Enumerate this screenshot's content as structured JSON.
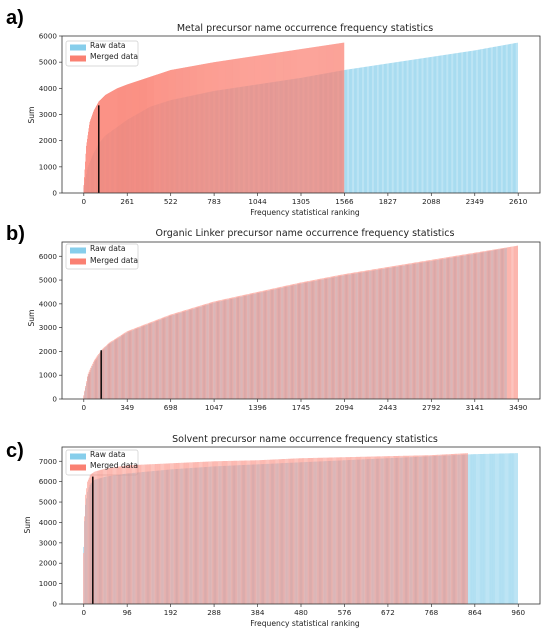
{
  "chart_data": [
    {
      "panel": "a)",
      "type": "bar",
      "title": "Metal precursor name occurrence frequency statistics",
      "xlabel": "Frequency statistical ranking",
      "ylabel": "Sum",
      "xlim": [
        -131,
        2741
      ],
      "ylim": [
        0,
        6000
      ],
      "xticks": [
        0,
        261,
        522,
        783,
        1044,
        1305,
        1566,
        1827,
        2088,
        2349,
        2610
      ],
      "yticks": [
        0,
        1000,
        2000,
        3000,
        4000,
        5000,
        6000
      ],
      "legend_position": "top-left",
      "marker_line": {
        "x": 90,
        "y": 3350
      },
      "series": [
        {
          "name": "Raw data",
          "color": "#87ceeb",
          "n": 2610,
          "x": [
            0,
            20,
            50,
            90,
            130,
            261,
            400,
            522,
            783,
            1044,
            1305,
            1566,
            1827,
            2088,
            2349,
            2610
          ],
          "y": [
            200,
            900,
            1400,
            1900,
            2200,
            2800,
            3300,
            3550,
            3900,
            4150,
            4400,
            4700,
            4950,
            5200,
            5450,
            5750
          ]
        },
        {
          "name": "Merged data",
          "color": "#fa8072",
          "n": 1566,
          "x": [
            0,
            15,
            35,
            60,
            90,
            130,
            200,
            261,
            522,
            783,
            1044,
            1305,
            1566
          ],
          "y": [
            300,
            1800,
            2700,
            3150,
            3500,
            3750,
            4000,
            4150,
            4700,
            5000,
            5250,
            5500,
            5750
          ]
        }
      ]
    },
    {
      "panel": "b)",
      "type": "bar",
      "title": "Organic Linker precursor name occurrence frequency statistics",
      "xlabel": "",
      "ylabel": "Sum",
      "xlim": [
        -175,
        3665
      ],
      "ylim": [
        0,
        6600
      ],
      "xticks": [
        0,
        349,
        698,
        1047,
        1396,
        1745,
        2094,
        2443,
        2792,
        3141,
        3490
      ],
      "yticks": [
        0,
        1000,
        2000,
        3000,
        4000,
        5000,
        6000
      ],
      "legend_position": "top-left",
      "marker_line": {
        "x": 140,
        "y": 2050
      },
      "series": [
        {
          "name": "Raw data",
          "color": "#87ceeb",
          "n": 3400,
          "x": [
            0,
            30,
            80,
            140,
            200,
            349,
            698,
            1047,
            1396,
            1745,
            2094,
            2443,
            2792,
            3141,
            3400
          ],
          "y": [
            100,
            900,
            1500,
            2000,
            2300,
            2800,
            3500,
            4050,
            4450,
            4850,
            5200,
            5500,
            5800,
            6100,
            6350
          ]
        },
        {
          "name": "Merged data",
          "color": "#fa8072",
          "n": 3490,
          "x": [
            0,
            30,
            80,
            140,
            200,
            349,
            698,
            1047,
            1396,
            1745,
            2094,
            2443,
            2792,
            3141,
            3490
          ],
          "y": [
            150,
            1000,
            1600,
            2050,
            2350,
            2850,
            3550,
            4100,
            4500,
            4900,
            5250,
            5550,
            5850,
            6150,
            6450
          ]
        }
      ]
    },
    {
      "panel": "c)",
      "type": "bar",
      "title": "Solvent precursor name occurrence frequency statistics",
      "xlabel": "Frequency statistical ranking",
      "ylabel": "Sum",
      "xlim": [
        -48,
        1008
      ],
      "ylim": [
        0,
        7700
      ],
      "xticks": [
        0,
        96,
        192,
        288,
        384,
        480,
        576,
        672,
        768,
        864,
        960
      ],
      "yticks": [
        0,
        1000,
        2000,
        3000,
        4000,
        5000,
        6000,
        7000
      ],
      "legend_position": "top-left",
      "marker_line": {
        "x": 20,
        "y": 6250
      },
      "series": [
        {
          "name": "Raw data",
          "color": "#87ceeb",
          "n": 960,
          "x": [
            0,
            3,
            8,
            15,
            25,
            50,
            96,
            192,
            288,
            384,
            480,
            576,
            672,
            768,
            864,
            960
          ],
          "y": [
            2800,
            4700,
            5500,
            5900,
            6100,
            6250,
            6400,
            6600,
            6750,
            6850,
            6950,
            7050,
            7150,
            7250,
            7350,
            7400
          ]
        },
        {
          "name": "Merged data",
          "color": "#fa8072",
          "n": 850,
          "x": [
            0,
            3,
            8,
            15,
            25,
            50,
            96,
            192,
            288,
            384,
            480,
            576,
            672,
            768,
            850
          ],
          "y": [
            2500,
            5200,
            6000,
            6350,
            6500,
            6650,
            6800,
            6900,
            7000,
            7050,
            7150,
            7200,
            7250,
            7300,
            7400
          ]
        }
      ]
    }
  ]
}
